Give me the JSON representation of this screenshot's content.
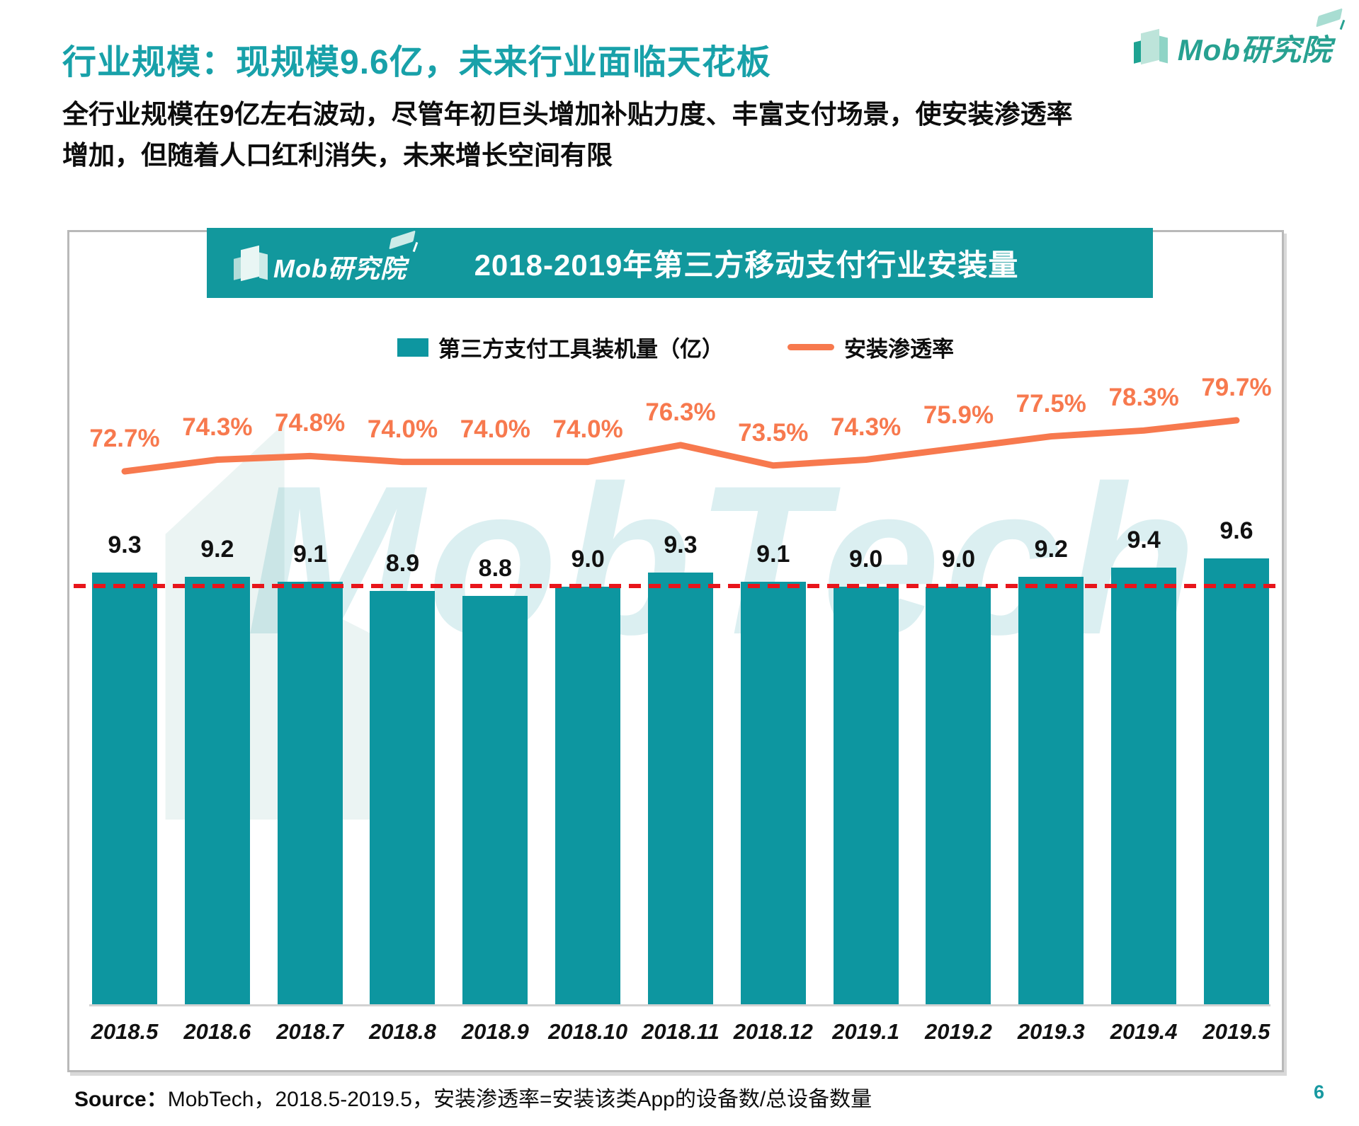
{
  "page": {
    "title": "行业规模：现规模9.6亿，未来行业面临天花板",
    "paragraph": "全行业规模在9亿左右波动，尽管年初巨头增加补贴力度、丰富支付场景，使安装渗透率增加，但随着人口红利消失，未来增长空间有限",
    "source_label": "Source：",
    "source_text": "MobTech，2018.5-2019.5，安装渗透率=安装该类App的设备数/总设备数量",
    "page_number": "6"
  },
  "logo": {
    "text": "Mob研究院"
  },
  "banner": {
    "title": "2018-2019年第三方移动支付行业安装量"
  },
  "legend": {
    "bar_label": "第三方支付工具装机量（亿）",
    "line_label": "安装渗透率"
  },
  "watermark": {
    "text": "MobTech"
  },
  "colors": {
    "title_teal": "#18a1a9",
    "banner_teal": "#12989d",
    "bar_teal": "#0d96a0",
    "line_orange": "#f7794e",
    "reference_red": "#e8151b",
    "page_number_teal": "#1899a1"
  },
  "chart_data": {
    "type": "bar",
    "title": "2018-2019年第三方移动支付行业安装量",
    "categories": [
      "2018.5",
      "2018.6",
      "2018.7",
      "2018.8",
      "2018.9",
      "2018.10",
      "2018.11",
      "2018.12",
      "2019.1",
      "2019.2",
      "2019.3",
      "2019.4",
      "2019.5"
    ],
    "series": [
      {
        "name": "第三方支付工具装机量（亿）",
        "type": "bar",
        "unit": "亿",
        "color": "#0d96a0",
        "values": [
          9.3,
          9.2,
          9.1,
          8.9,
          8.8,
          9.0,
          9.3,
          9.1,
          9.0,
          9.0,
          9.2,
          9.4,
          9.6
        ]
      },
      {
        "name": "安装渗透率",
        "type": "line",
        "unit": "%",
        "color": "#f7794e",
        "values": [
          72.7,
          74.3,
          74.8,
          74.0,
          74.0,
          74.0,
          76.3,
          73.5,
          74.3,
          75.9,
          77.5,
          78.3,
          79.7
        ]
      }
    ],
    "reference_line": {
      "value": 9.05,
      "style": "dashed",
      "color": "#e8151b"
    },
    "ylim_bar": [
      0,
      9.6
    ],
    "grid": false,
    "legend_position": "top"
  }
}
